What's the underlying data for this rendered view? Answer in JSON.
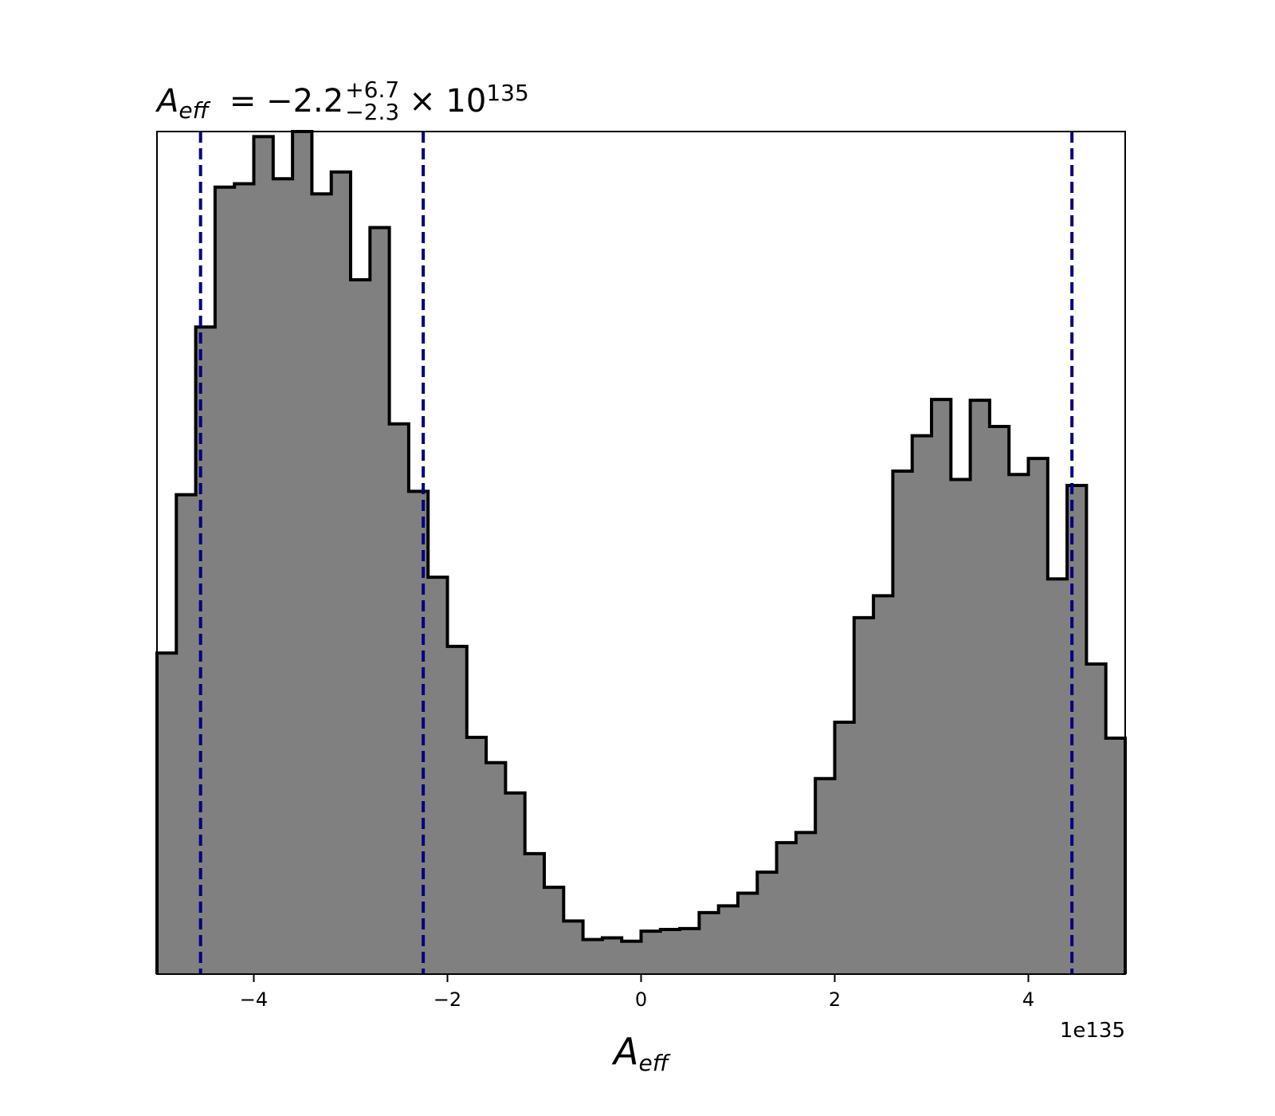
{
  "chart_data": {
    "type": "histogram",
    "title": {
      "symbol": "A",
      "subscript": "eff",
      "equals": "= ",
      "median": "−2.2",
      "upper": "+6.7",
      "lower": "−2.3",
      "times": "× 10",
      "exponent": "135"
    },
    "xlabel": {
      "symbol": "A",
      "subscript": "eff"
    },
    "x_offset_label": "1e135",
    "xlim": [
      -5,
      5
    ],
    "ylim": [
      0,
      1
    ],
    "y_axis_visible": false,
    "grid": false,
    "xticks": [
      -4,
      -2,
      0,
      2,
      4
    ],
    "xtick_labels": [
      "−4",
      "−2",
      "0",
      "2",
      "4"
    ],
    "bin_edges": [
      -5.0,
      -4.8,
      -4.6,
      -4.4,
      -4.2,
      -4.0,
      -3.8,
      -3.6,
      -3.4,
      -3.2,
      -3.0,
      -2.8,
      -2.6,
      -2.4,
      -2.2,
      -2.0,
      -1.8,
      -1.6,
      -1.4,
      -1.2,
      -1.0,
      -0.8,
      -0.6,
      -0.4,
      -0.2,
      0.0,
      0.2,
      0.4,
      0.6,
      0.8,
      1.0,
      1.2,
      1.4,
      1.6,
      1.8,
      2.0,
      2.2,
      2.4,
      2.6,
      2.8,
      3.0,
      3.2,
      3.4,
      3.6,
      3.8,
      4.0,
      4.2,
      4.4,
      4.6,
      4.8,
      5.0
    ],
    "values": [
      0.381,
      0.569,
      0.768,
      0.934,
      0.938,
      0.994,
      0.944,
      1.0,
      0.926,
      0.952,
      0.824,
      0.886,
      0.653,
      0.573,
      0.471,
      0.389,
      0.281,
      0.251,
      0.215,
      0.143,
      0.103,
      0.063,
      0.041,
      0.043,
      0.039,
      0.051,
      0.053,
      0.054,
      0.073,
      0.081,
      0.096,
      0.121,
      0.156,
      0.168,
      0.232,
      0.299,
      0.423,
      0.449,
      0.597,
      0.639,
      0.682,
      0.587,
      0.681,
      0.65,
      0.593,
      0.612,
      0.469,
      0.58,
      0.368,
      0.28
    ],
    "quantile_lines": [
      -4.55,
      -2.25,
      4.45
    ],
    "colors": {
      "fill": "#808080",
      "edge": "#000000",
      "quantile": "#000080",
      "axes": "#000000"
    }
  }
}
